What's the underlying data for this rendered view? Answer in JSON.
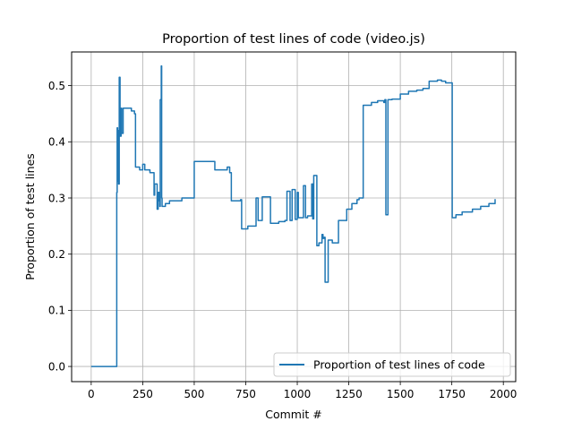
{
  "chart_data": {
    "type": "line",
    "title": "Proportion of test lines of code (video.js)",
    "xlabel": "Commit #",
    "ylabel": "Proportion of test lines",
    "xlim": [
      -95,
      2060
    ],
    "ylim": [
      -0.027,
      0.56
    ],
    "xticks": [
      0,
      250,
      500,
      750,
      1000,
      1250,
      1500,
      1750,
      2000
    ],
    "xtick_labels": [
      "0",
      "250",
      "500",
      "750",
      "1000",
      "1250",
      "1500",
      "1750",
      "2000"
    ],
    "yticks": [
      0.0,
      0.1,
      0.2,
      0.3,
      0.4,
      0.5
    ],
    "ytick_labels": [
      "0.0",
      "0.1",
      "0.2",
      "0.3",
      "0.4",
      "0.5"
    ],
    "grid": true,
    "legend_position": "bottom-right",
    "series": [
      {
        "name": "Proportion of test lines of code",
        "color": "#1f77b4",
        "x": [
          0,
          124,
          124,
          126,
          126,
          128,
          128,
          130,
          130,
          133,
          133,
          136,
          136,
          140,
          140,
          145,
          145,
          148,
          148,
          155,
          155,
          195,
          195,
          210,
          210,
          215,
          215,
          235,
          235,
          250,
          250,
          260,
          260,
          285,
          285,
          305,
          305,
          308,
          308,
          320,
          320,
          325,
          325,
          330,
          330,
          333,
          333,
          335,
          335,
          340,
          340,
          342,
          342,
          344,
          344,
          360,
          360,
          380,
          380,
          440,
          440,
          500,
          500,
          600,
          600,
          660,
          660,
          672,
          672,
          680,
          680,
          725,
          725,
          730,
          730,
          760,
          760,
          800,
          800,
          810,
          810,
          830,
          830,
          870,
          870,
          895,
          895,
          910,
          910,
          940,
          940,
          950,
          950,
          965,
          965,
          975,
          975,
          990,
          990,
          1000,
          1000,
          1005,
          1005,
          1015,
          1015,
          1030,
          1030,
          1040,
          1040,
          1050,
          1050,
          1070,
          1070,
          1075,
          1075,
          1080,
          1080,
          1095,
          1095,
          1105,
          1105,
          1120,
          1120,
          1125,
          1125,
          1130,
          1130,
          1135,
          1135,
          1150,
          1150,
          1170,
          1170,
          1200,
          1200,
          1240,
          1240,
          1265,
          1265,
          1290,
          1290,
          1300,
          1300,
          1320,
          1320,
          1360,
          1360,
          1390,
          1390,
          1420,
          1420,
          1425,
          1425,
          1430,
          1430,
          1440,
          1440,
          1460,
          1460,
          1500,
          1500,
          1540,
          1540,
          1580,
          1580,
          1610,
          1610,
          1640,
          1640,
          1680,
          1680,
          1700,
          1700,
          1720,
          1720,
          1750,
          1750,
          1752,
          1752,
          1770,
          1770,
          1800,
          1800,
          1850,
          1850,
          1890,
          1890,
          1930,
          1930,
          1960,
          1960
        ],
        "y": [
          0.0,
          0.0,
          0.31,
          0.31,
          0.425,
          0.425,
          0.33,
          0.33,
          0.42,
          0.42,
          0.325,
          0.325,
          0.515,
          0.515,
          0.41,
          0.41,
          0.46,
          0.46,
          0.415,
          0.415,
          0.46,
          0.46,
          0.455,
          0.455,
          0.45,
          0.45,
          0.355,
          0.355,
          0.35,
          0.35,
          0.36,
          0.36,
          0.35,
          0.35,
          0.345,
          0.345,
          0.305,
          0.305,
          0.325,
          0.325,
          0.28,
          0.28,
          0.31,
          0.31,
          0.295,
          0.295,
          0.285,
          0.285,
          0.475,
          0.475,
          0.535,
          0.535,
          0.3,
          0.3,
          0.285,
          0.285,
          0.29,
          0.29,
          0.295,
          0.295,
          0.3,
          0.3,
          0.365,
          0.365,
          0.35,
          0.35,
          0.355,
          0.355,
          0.345,
          0.345,
          0.295,
          0.295,
          0.297,
          0.297,
          0.245,
          0.245,
          0.25,
          0.25,
          0.3,
          0.3,
          0.26,
          0.26,
          0.302,
          0.302,
          0.255,
          0.255,
          0.255,
          0.255,
          0.258,
          0.258,
          0.26,
          0.26,
          0.312,
          0.312,
          0.26,
          0.26,
          0.315,
          0.315,
          0.262,
          0.262,
          0.31,
          0.31,
          0.265,
          0.265,
          0.265,
          0.265,
          0.322,
          0.322,
          0.265,
          0.265,
          0.268,
          0.268,
          0.325,
          0.325,
          0.263,
          0.263,
          0.34,
          0.34,
          0.215,
          0.215,
          0.22,
          0.22,
          0.235,
          0.235,
          0.228,
          0.228,
          0.23,
          0.23,
          0.15,
          0.15,
          0.225,
          0.225,
          0.22,
          0.22,
          0.26,
          0.26,
          0.28,
          0.28,
          0.29,
          0.29,
          0.297,
          0.297,
          0.3,
          0.3,
          0.465,
          0.465,
          0.47,
          0.47,
          0.473,
          0.473,
          0.47,
          0.47,
          0.475,
          0.475,
          0.27,
          0.27,
          0.475,
          0.475,
          0.476,
          0.476,
          0.485,
          0.485,
          0.49,
          0.49,
          0.492,
          0.492,
          0.495,
          0.495,
          0.508,
          0.508,
          0.51,
          0.51,
          0.508,
          0.508,
          0.505,
          0.505,
          0.505,
          0.505,
          0.265,
          0.265,
          0.27,
          0.27,
          0.275,
          0.275,
          0.28,
          0.28,
          0.285,
          0.285,
          0.29,
          0.29,
          0.298
        ]
      }
    ]
  }
}
